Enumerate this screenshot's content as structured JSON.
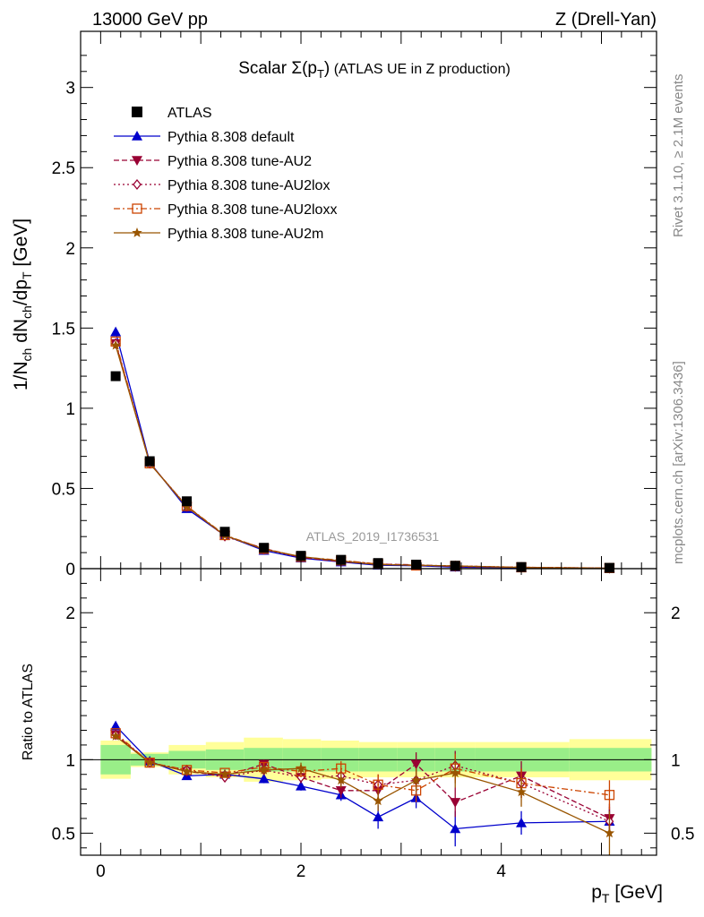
{
  "header": {
    "left": "13000 GeV pp",
    "right": "Z (Drell-Yan)"
  },
  "side": {
    "rivet": "Rivet 3.1.10, ≥ 2.1M events",
    "mcplots": "mcplots.cern.ch [arXiv:1306.3436]"
  },
  "watermark": "ATLAS_2019_I1736531",
  "chart_data": {
    "type": "scatter",
    "title": "Scalar Σ(p_T) (ATLAS UE in Z production)",
    "xlabel": "p_T [GeV]",
    "ylabel_main": "1/N_ch dN_ch/dp_T [GeV]",
    "ylabel_ratio": "Ratio to ATLAS",
    "xlim": [
      -0.2,
      5.55
    ],
    "ylim_main": [
      0,
      3.35
    ],
    "ylim_ratio": [
      0.35,
      2.3
    ],
    "x_ticks": [
      "0",
      "2",
      "4"
    ],
    "y_ticks_main": [
      "0",
      "0.5",
      "1",
      "1.5",
      "2",
      "2.5",
      "3"
    ],
    "y_ticks_ratio": [
      "0.5",
      "1",
      "2"
    ],
    "x": [
      0.15,
      0.49,
      0.86,
      1.24,
      1.63,
      2.0,
      2.4,
      2.77,
      3.15,
      3.54,
      4.2,
      5.08
    ],
    "x_bins": [
      [
        0.0,
        0.3
      ],
      [
        0.3,
        0.68
      ],
      [
        0.68,
        1.05
      ],
      [
        1.05,
        1.43
      ],
      [
        1.43,
        1.82
      ],
      [
        1.82,
        2.2
      ],
      [
        2.2,
        2.58
      ],
      [
        2.58,
        2.96
      ],
      [
        2.96,
        3.34
      ],
      [
        3.34,
        3.74
      ],
      [
        3.74,
        4.68
      ],
      [
        4.68,
        5.5
      ]
    ],
    "atlas_values": [
      1.2,
      0.67,
      0.42,
      0.23,
      0.13,
      0.08,
      0.055,
      0.035,
      0.025,
      0.018,
      0.01,
      0.005
    ],
    "band_green": [
      0.1,
      0.04,
      0.06,
      0.07,
      0.08,
      0.08,
      0.08,
      0.08,
      0.08,
      0.08,
      0.08,
      0.08
    ],
    "band_yellow": [
      0.13,
      0.05,
      0.1,
      0.12,
      0.15,
      0.14,
      0.13,
      0.12,
      0.12,
      0.12,
      0.12,
      0.14
    ],
    "legend": [
      "ATLAS",
      "Pythia 8.308 default",
      "Pythia 8.308 tune-AU2",
      "Pythia 8.308 tune-AU2lox",
      "Pythia 8.308 tune-AU2loxx",
      "Pythia 8.308 tune-AU2m"
    ],
    "series": [
      {
        "name": "Pythia 8.308 default",
        "color": "#0000cc",
        "dash": "",
        "marker": "triangle-up",
        "ratio": [
          1.23,
          0.99,
          0.89,
          0.9,
          0.87,
          0.82,
          0.76,
          0.61,
          0.74,
          0.53,
          0.57,
          0.58
        ],
        "err": [
          0.01,
          0.01,
          0.02,
          0.02,
          0.03,
          0.03,
          0.04,
          0.08,
          0.07,
          0.12,
          0.08,
          0.08
        ]
      },
      {
        "name": "Pythia 8.308 tune-AU2",
        "color": "#990033",
        "dash": "6,3",
        "marker": "triangle-down",
        "ratio": [
          1.17,
          0.98,
          0.92,
          0.89,
          0.97,
          0.88,
          0.79,
          0.79,
          0.97,
          0.71,
          0.89,
          0.6
        ],
        "err": [
          0.01,
          0.01,
          0.02,
          0.02,
          0.03,
          0.04,
          0.05,
          0.07,
          0.08,
          0.1,
          0.1,
          0.1
        ]
      },
      {
        "name": "Pythia 8.308 tune-AU2lox",
        "color": "#990033",
        "dash": "2,3",
        "marker": "diamond",
        "ratio": [
          1.17,
          0.98,
          0.93,
          0.88,
          0.93,
          0.88,
          0.89,
          0.83,
          0.86,
          0.96,
          0.84,
          0.58
        ],
        "err": [
          0.01,
          0.01,
          0.02,
          0.02,
          0.03,
          0.04,
          0.05,
          0.07,
          0.08,
          0.1,
          0.1,
          0.1
        ]
      },
      {
        "name": "Pythia 8.308 tune-AU2loxx",
        "color": "#cc4400",
        "dash": "7,3,2,3",
        "marker": "square-open",
        "ratio": [
          1.18,
          0.98,
          0.93,
          0.91,
          0.95,
          0.92,
          0.94,
          0.83,
          0.79,
          0.94,
          0.84,
          0.76
        ],
        "err": [
          0.01,
          0.01,
          0.02,
          0.02,
          0.03,
          0.04,
          0.05,
          0.07,
          0.08,
          0.1,
          0.1,
          0.1
        ]
      },
      {
        "name": "Pythia 8.308 tune-AU2m",
        "color": "#995500",
        "dash": "",
        "marker": "star",
        "ratio": [
          1.16,
          0.98,
          0.92,
          0.9,
          0.93,
          0.94,
          0.86,
          0.72,
          0.86,
          0.91,
          0.78,
          0.5
        ],
        "err": [
          0.01,
          0.01,
          0.02,
          0.02,
          0.03,
          0.04,
          0.05,
          0.07,
          0.08,
          0.1,
          0.1,
          0.15
        ]
      }
    ]
  }
}
